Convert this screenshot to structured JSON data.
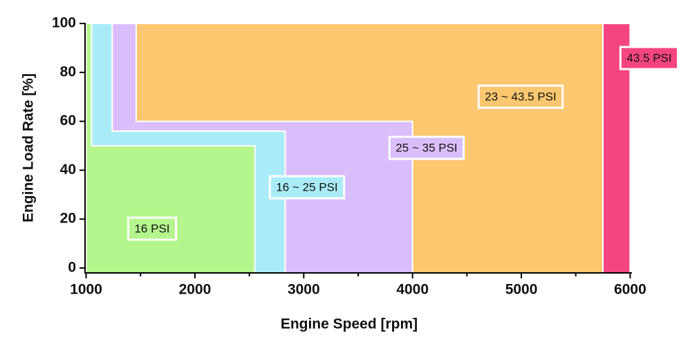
{
  "chart_data": {
    "type": "region",
    "xlabel": "Engine Speed [rpm]",
    "ylabel": "Engine Load Rate [%]",
    "xlim": [
      990,
      6010
    ],
    "ylim": [
      -2,
      100
    ],
    "xticks": [
      1000,
      2000,
      3000,
      4000,
      5000,
      6000
    ],
    "xminor_ticks": [
      1500,
      2500,
      3500,
      4500,
      5500
    ],
    "yticks": [
      0,
      20,
      40,
      60,
      80,
      100
    ],
    "regions": [
      {
        "name": "16 PSI",
        "color": "#b4f58d",
        "x": [
          1000,
          2550,
          2550,
          1050,
          1050,
          1000
        ],
        "y": [
          -2,
          -2,
          50,
          50,
          100,
          100
        ]
      },
      {
        "name": "16 ~ 25 PSI",
        "color": "#a9ecf8",
        "x": [
          2550,
          2830,
          2830,
          1240,
          1240,
          1050,
          1050,
          2550
        ],
        "y": [
          -2,
          -2,
          56,
          56,
          100,
          100,
          50,
          50
        ]
      },
      {
        "name": "25 ~ 35 PSI",
        "color": "#dabefb",
        "x": [
          2830,
          4000,
          4000,
          1460,
          1460,
          1240,
          1240,
          2830
        ],
        "y": [
          -2,
          -2,
          60,
          60,
          100,
          100,
          56,
          56
        ]
      },
      {
        "name": "23 ~ 43.5 PSI",
        "color": "#fbc76f",
        "x": [
          4000,
          5750,
          5750,
          1460,
          1460,
          4000
        ],
        "y": [
          -2,
          -2,
          100,
          100,
          60,
          60
        ]
      },
      {
        "name": "43.5 PSI",
        "color": "#f54580",
        "x": [
          5750,
          6000,
          6000,
          5750
        ],
        "y": [
          -2,
          -2,
          100,
          100
        ]
      }
    ]
  }
}
